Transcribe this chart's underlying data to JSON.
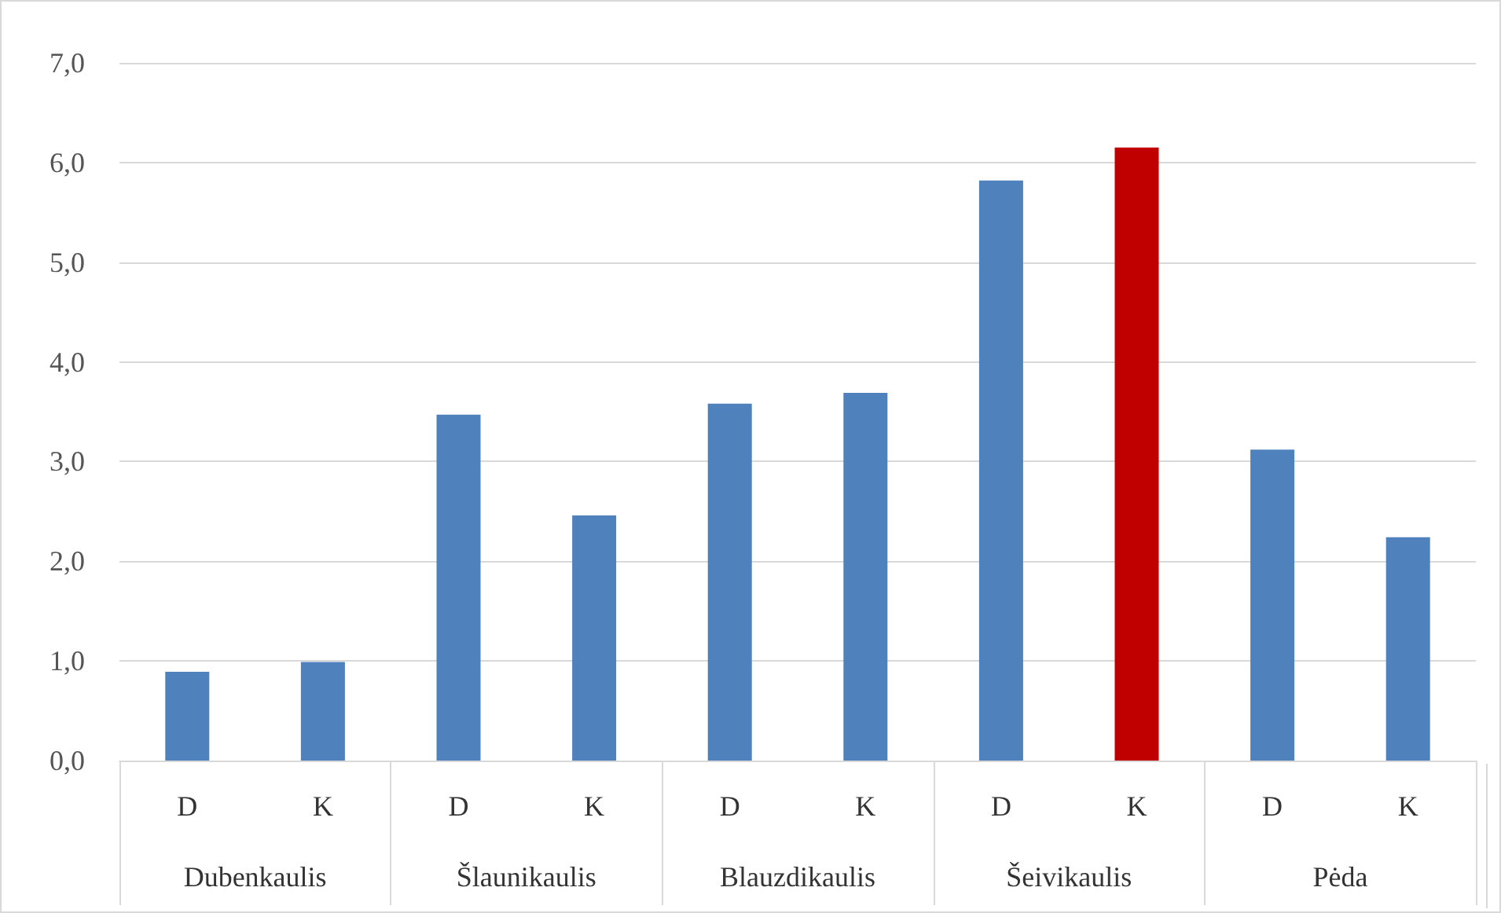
{
  "chart_data": {
    "type": "bar",
    "categories": [
      "D",
      "K",
      "D",
      "K",
      "D",
      "K",
      "D",
      "K",
      "D",
      "K"
    ],
    "values": [
      0.89,
      0.99,
      3.47,
      2.46,
      3.58,
      3.69,
      5.82,
      6.15,
      3.12,
      2.24
    ],
    "colors": [
      "#4f81bd",
      "#4f81bd",
      "#4f81bd",
      "#4f81bd",
      "#4f81bd",
      "#4f81bd",
      "#4f81bd",
      "#c00000",
      "#4f81bd",
      "#4f81bd"
    ],
    "annotations": [
      "Dubenkaulis",
      "Šlaunikaulis",
      "Blauzdikaulis",
      "Šeivikaulis",
      "Pėda"
    ],
    "ylim": [
      0,
      7
    ],
    "yticks": [
      {
        "value": 0,
        "label": "0,0"
      },
      {
        "value": 1,
        "label": "1,0"
      },
      {
        "value": 2,
        "label": "2,0"
      },
      {
        "value": 3,
        "label": "3,0"
      },
      {
        "value": 4,
        "label": "4,0"
      },
      {
        "value": 5,
        "label": "5,0"
      },
      {
        "value": 6,
        "label": "6,0"
      },
      {
        "value": 7,
        "label": "7,0"
      }
    ],
    "grid": "y"
  }
}
